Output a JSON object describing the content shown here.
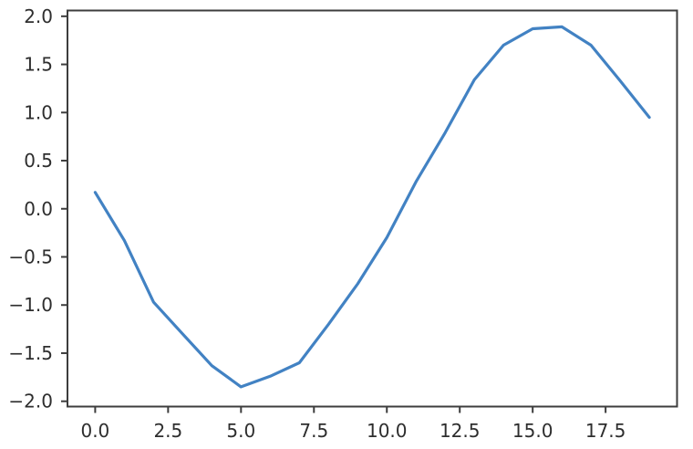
{
  "chart_data": {
    "type": "line",
    "title": "",
    "xlabel": "",
    "ylabel": "",
    "x": [
      0,
      1,
      2,
      3,
      4,
      5,
      6,
      7,
      8,
      9,
      10,
      11,
      12,
      13,
      14,
      15,
      16,
      17,
      18,
      19
    ],
    "y": [
      0.17,
      -0.33,
      -0.97,
      -1.3,
      -1.63,
      -1.85,
      -1.74,
      -1.6,
      -1.2,
      -0.78,
      -0.3,
      0.28,
      0.79,
      1.34,
      1.7,
      1.87,
      1.89,
      1.7,
      1.33,
      0.95
    ],
    "xlim": [
      -0.95,
      19.95
    ],
    "ylim": [
      -2.055,
      2.06
    ],
    "x_tick_values": [
      0.0,
      2.5,
      5.0,
      7.5,
      10.0,
      12.5,
      15.0,
      17.5
    ],
    "x_tick_labels": [
      "0.0",
      "2.5",
      "5.0",
      "7.5",
      "10.0",
      "12.5",
      "15.0",
      "17.5"
    ],
    "y_tick_values": [
      2.0,
      1.5,
      1.0,
      0.5,
      0.0,
      -0.5,
      -1.0,
      -1.5,
      -2.0
    ],
    "y_tick_labels": [
      "2.0",
      "1.5",
      "1.0",
      "0.5",
      "0.0",
      "−0.5",
      "−1.0",
      "−1.5",
      "−2.0"
    ],
    "grid": false,
    "legend": null,
    "line_color": "#4282c3",
    "spine_color": "#3d3d3d",
    "tick_color": "#3d3d3d",
    "label_color": "#2e2e2e",
    "background_color": "#ffffff"
  }
}
